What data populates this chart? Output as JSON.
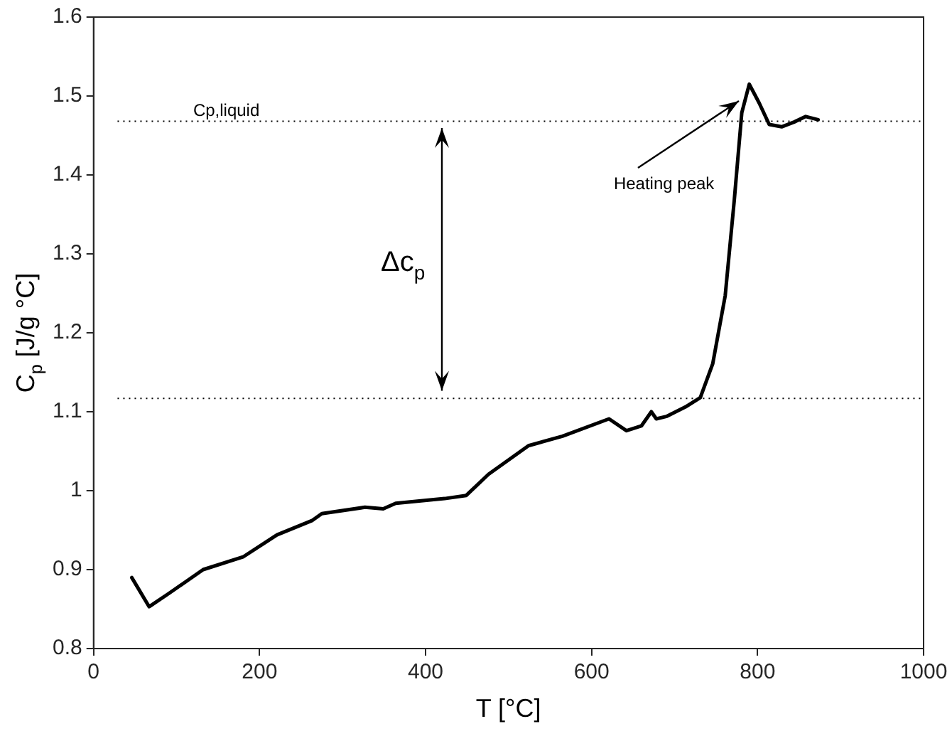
{
  "chart_data": {
    "type": "line",
    "xlabel": "T [°C]",
    "ylabel": "C$_{p}$ [J/g °C]",
    "xlim": [
      0,
      1000
    ],
    "xticks": [
      0,
      200,
      400,
      600,
      800,
      1000
    ],
    "ylim": [
      0.8,
      1.6
    ],
    "yticks": [
      0.8,
      0.9,
      1,
      1.1,
      1.2,
      1.3,
      1.4,
      1.5,
      1.6
    ],
    "grid": false,
    "legend": false,
    "marker": "none",
    "line_style": "solid",
    "series": [
      {
        "color": "#000000",
        "x": [
          46,
          67,
          91,
          132,
          180,
          221,
          263,
          275,
          327,
          349,
          364,
          423,
          449,
          476,
          488,
          524,
          565,
          621,
          642,
          660,
          672,
          678,
          690,
          713,
          731,
          746,
          761,
          772,
          781,
          790,
          802,
          814,
          829,
          844,
          858,
          873
        ],
        "values": [
          0.89,
          0.853,
          0.87,
          0.9,
          0.916,
          0.944,
          0.962,
          0.971,
          0.979,
          0.977,
          0.984,
          0.99,
          0.994,
          1.021,
          1.03,
          1.057,
          1.069,
          1.091,
          1.076,
          1.082,
          1.1,
          1.091,
          1.094,
          1.106,
          1.118,
          1.161,
          1.247,
          1.369,
          1.479,
          1.515,
          1.491,
          1.464,
          1.461,
          1.467,
          1.474,
          1.47
        ]
      }
    ],
    "ref_lines": [
      {
        "axis": "y",
        "value": 1.468,
        "label": "Cp,liquid",
        "line_style": "dotted",
        "color": "#000000"
      },
      {
        "axis": "y",
        "value": 1.117,
        "line_style": "dotted",
        "color": "#000000"
      }
    ],
    "annotations": [
      "Δc$_{p}$",
      {
        "text": "Heating peak",
        "x": 778,
        "y": 1.494
      }
    ]
  }
}
